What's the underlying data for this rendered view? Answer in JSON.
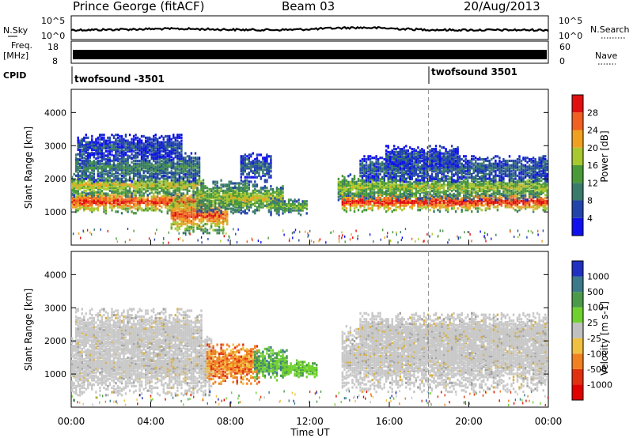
{
  "header": {
    "station": "Prince George (fitACF)",
    "beam": "Beam 03",
    "date": "20/Aug/2013"
  },
  "rows": {
    "nsky": {
      "label": "N.Sky",
      "top_label": "10^5",
      "bottom_label": "10^0"
    },
    "nsearch": {
      "label": "N.Search",
      "top_label": "10^5",
      "bottom_label": "10^0"
    },
    "freq": {
      "label_line1": "Freq.",
      "label_line2": "[MHz]",
      "top_value": "18",
      "bottom_value": "8"
    },
    "nave": {
      "label": "Nave",
      "top_value": "60",
      "bottom_value": "0"
    },
    "cpid": {
      "label": "CPID",
      "segments": [
        {
          "name": "twofsound -3501",
          "start_hour": 0
        },
        {
          "name": "twofsound 3501",
          "start_hour": 18
        }
      ]
    }
  },
  "chart_data": [
    {
      "type": "heatmap",
      "panel": "power",
      "xlabel": "",
      "ylabel": "Slant Range [km]",
      "xlim_hours": [
        0,
        24
      ],
      "ylim_km": [
        0,
        4700
      ],
      "y_ticks": [
        1000,
        2000,
        3000,
        4000
      ],
      "colorbar": {
        "label": "Power [dB]",
        "ticks": [
          "4",
          "8",
          "12",
          "16",
          "20",
          "24",
          "28"
        ],
        "range": [
          0,
          32
        ],
        "colors": [
          "#1010ee",
          "#2244aa",
          "#3a7a6a",
          "#4a9a3a",
          "#a8c830",
          "#f0a020",
          "#f06020",
          "#e01010"
        ]
      },
      "bands": [
        {
          "t0": 0.0,
          "t1": 6.6,
          "r_center": 1350,
          "r_width": 350,
          "level": 0.9
        },
        {
          "t0": 0.0,
          "t1": 6.6,
          "r_center": 1850,
          "r_width": 350,
          "level": 0.6
        },
        {
          "t0": 0.2,
          "t1": 6.4,
          "r_center": 2400,
          "r_width": 450,
          "level": 0.35
        },
        {
          "t0": 0.3,
          "t1": 5.5,
          "r_center": 3000,
          "r_width": 400,
          "level": 0.2
        },
        {
          "t0": 5.0,
          "t1": 7.8,
          "r_center": 950,
          "r_width": 550,
          "level": 0.85
        },
        {
          "t0": 6.3,
          "t1": 8.8,
          "r_center": 1500,
          "r_width": 500,
          "level": 0.55
        },
        {
          "t0": 7.8,
          "t1": 10.6,
          "r_center": 1450,
          "r_width": 450,
          "level": 0.6
        },
        {
          "t0": 8.5,
          "t1": 10.0,
          "r_center": 2400,
          "r_width": 450,
          "level": 0.25
        },
        {
          "t0": 10.0,
          "t1": 11.8,
          "r_center": 1200,
          "r_width": 250,
          "level": 0.5
        },
        {
          "t0": 13.6,
          "t1": 24.0,
          "r_center": 1350,
          "r_width": 300,
          "level": 0.95
        },
        {
          "t0": 13.4,
          "t1": 24.0,
          "r_center": 1800,
          "r_width": 400,
          "level": 0.55
        },
        {
          "t0": 14.5,
          "t1": 24.0,
          "r_center": 2350,
          "r_width": 400,
          "level": 0.25
        },
        {
          "t0": 15.8,
          "t1": 19.5,
          "r_center": 2700,
          "r_width": 350,
          "level": 0.2
        }
      ]
    },
    {
      "type": "heatmap",
      "panel": "velocity",
      "xlabel": "Time UT",
      "ylabel": "Slant Range [km]",
      "xlim_hours": [
        0,
        24
      ],
      "ylim_km": [
        0,
        4700
      ],
      "y_ticks": [
        1000,
        2000,
        3000,
        4000
      ],
      "x_ticks": [
        "00:00",
        "04:00",
        "08:00",
        "12:00",
        "16:00",
        "20:00",
        "00:00"
      ],
      "colorbar": {
        "label": "Velocity [m s-1]",
        "ticks": [
          "1000",
          "500",
          "100",
          "25",
          "-25",
          "-100",
          "-500",
          "-1000"
        ],
        "range": [
          -1200,
          1200
        ],
        "colors": [
          "#2030c0",
          "#3a7a8a",
          "#4a9a4a",
          "#70d030",
          "#c0c0c0",
          "#f0c040",
          "#f08020",
          "#e03010",
          "#e00000"
        ]
      },
      "bands": [
        {
          "t0": 0.0,
          "t1": 7.0,
          "r_center": 1300,
          "r_width": 900,
          "kind": "ground"
        },
        {
          "t0": 0.2,
          "t1": 6.5,
          "r_center": 2300,
          "r_width": 700,
          "kind": "ground"
        },
        {
          "t0": 13.6,
          "t1": 24.0,
          "r_center": 1500,
          "r_width": 1000,
          "kind": "ground"
        },
        {
          "t0": 14.5,
          "t1": 24.0,
          "r_center": 2300,
          "r_width": 600,
          "kind": "ground"
        },
        {
          "t0": 6.8,
          "t1": 9.4,
          "r_center": 1350,
          "r_width": 600,
          "kind": "negative"
        },
        {
          "t0": 9.2,
          "t1": 10.8,
          "r_center": 1350,
          "r_width": 500,
          "kind": "positive"
        },
        {
          "t0": 10.6,
          "t1": 12.3,
          "r_center": 1200,
          "r_width": 250,
          "kind": "slowpos"
        }
      ]
    }
  ]
}
